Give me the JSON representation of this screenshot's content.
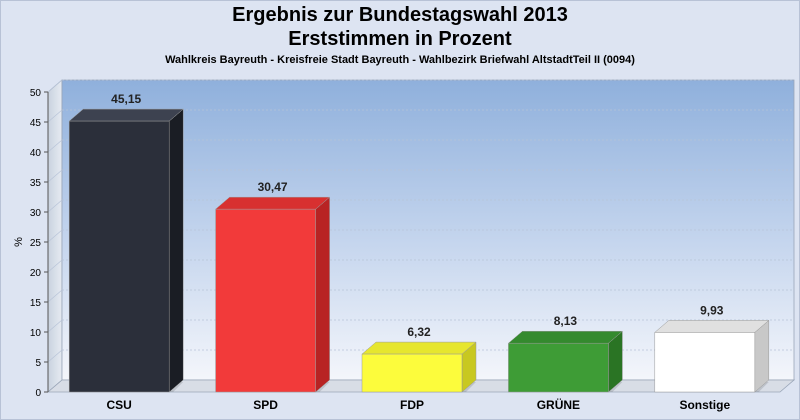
{
  "chart_data": {
    "type": "bar",
    "title": "Ergebnis zur Bundestagswahl 2013",
    "title2": "Erststimmen in Prozent",
    "subtitle": "Wahlkreis Bayreuth - Kreisfreie Stadt Bayreuth - Wahlbezirk Briefwahl AltstadtTeil II (0094)",
    "ylabel": "%",
    "xlabel": "",
    "ylim": [
      0,
      50
    ],
    "yticks": [
      "0",
      "5",
      "10",
      "15",
      "20",
      "25",
      "30",
      "35",
      "40",
      "45",
      "50"
    ],
    "categories": [
      "CSU",
      "SPD",
      "FDP",
      "GRÜNE",
      "Sonstige"
    ],
    "values": [
      45.15,
      30.47,
      6.32,
      8.13,
      9.93
    ],
    "value_labels": [
      "45,15",
      "30,47",
      "6,32",
      "8,13",
      "9,93"
    ],
    "colors": [
      "#2b2f3a",
      "#f23a3a",
      "#fcfc3c",
      "#3e9c36",
      "#ffffff"
    ],
    "side_colors": [
      "#1a1d24",
      "#b82323",
      "#c8c820",
      "#2a7424",
      "#c8c8c8"
    ],
    "top_colors": [
      "#3d4250",
      "#d83030",
      "#e6e62e",
      "#348a2e",
      "#e0e0e0"
    ],
    "grid": true,
    "three_d": true
  }
}
